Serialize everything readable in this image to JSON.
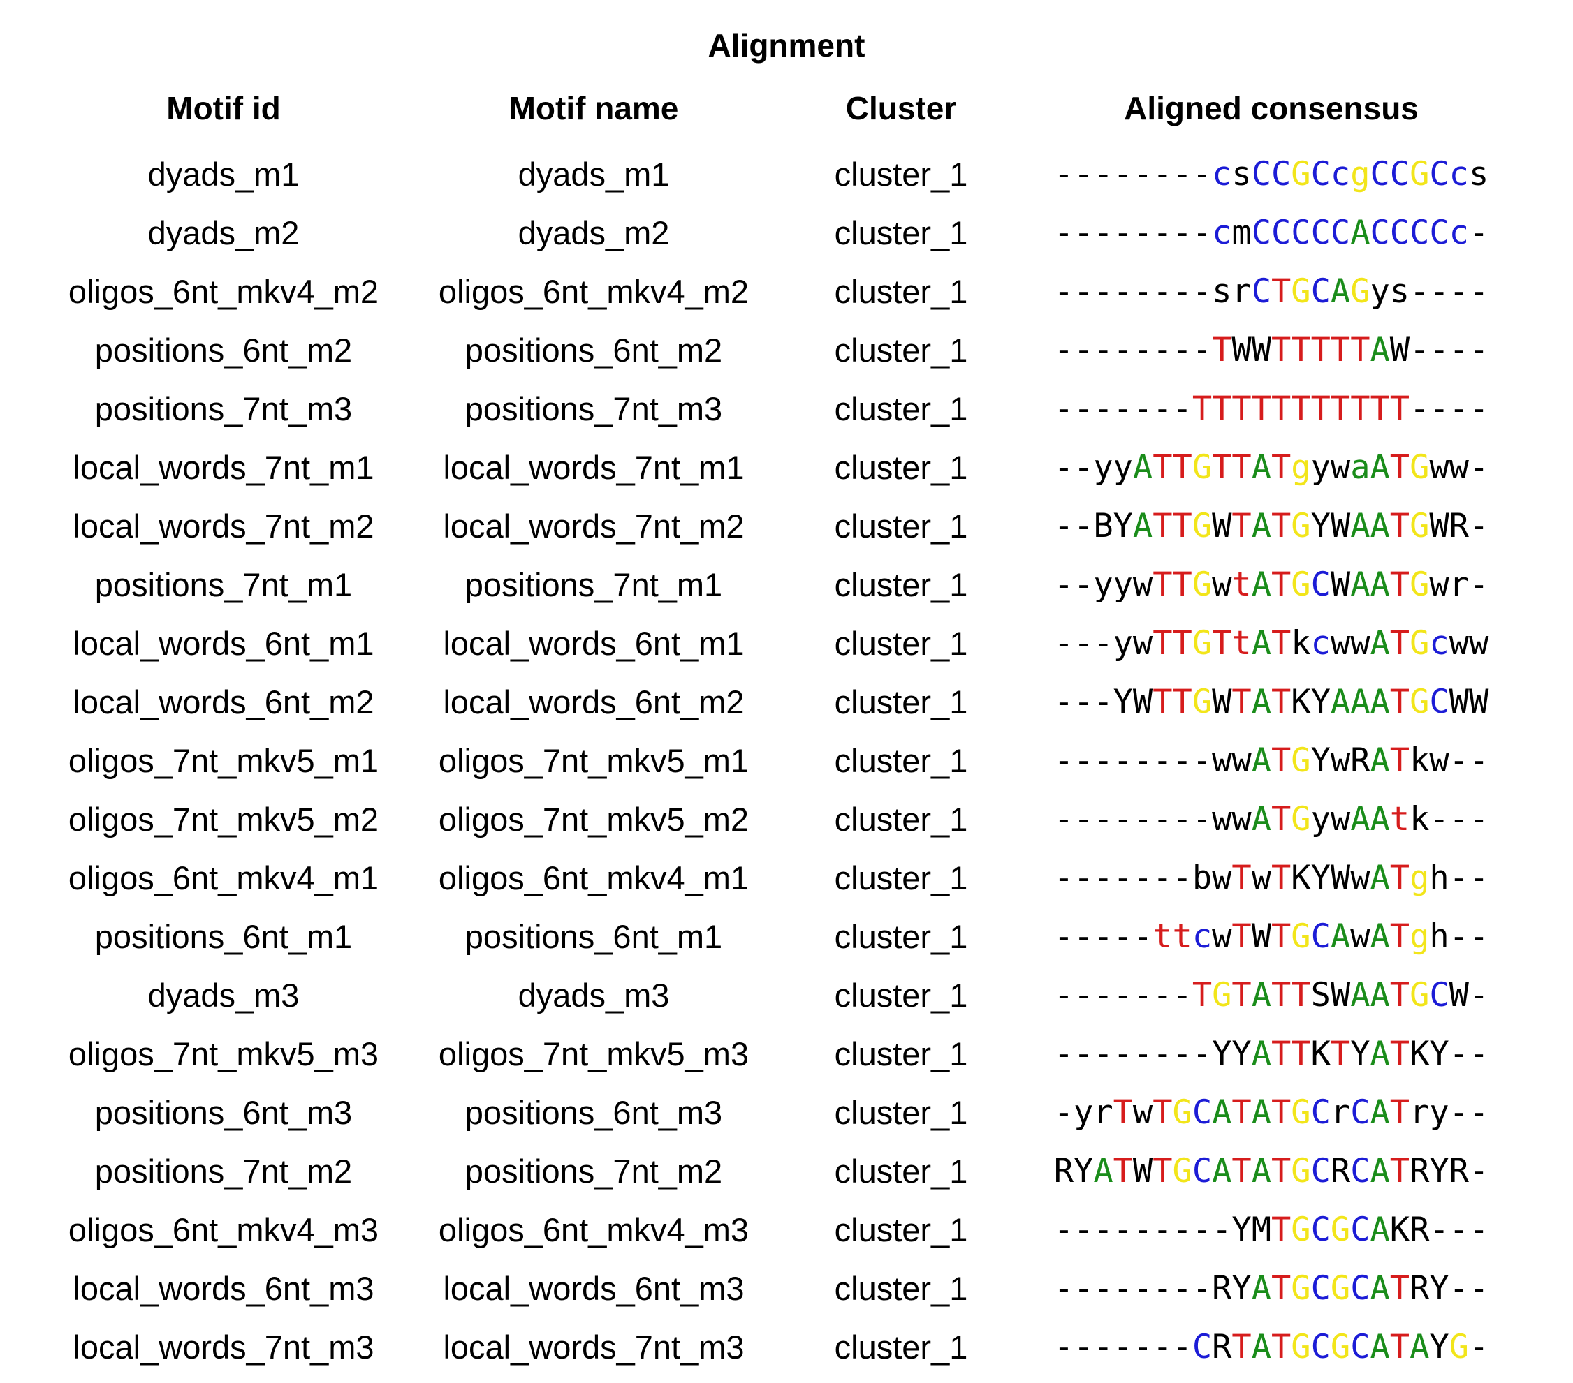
{
  "title": "Alignment",
  "headers": {
    "motif_id": "Motif id",
    "motif_name": "Motif name",
    "cluster": "Cluster",
    "aligned_consensus": "Aligned consensus"
  },
  "colors": {
    "A": "#1a8c1a",
    "C": "#1c1cd6",
    "G": "#f2e51a",
    "T": "#d61c1c",
    "other": "#000000"
  },
  "rows": [
    {
      "motif_id": "dyads_m1",
      "motif_name": "dyads_m1",
      "cluster": "cluster_1",
      "consensus": "--------csCCGCcgCCGCcs"
    },
    {
      "motif_id": "dyads_m2",
      "motif_name": "dyads_m2",
      "cluster": "cluster_1",
      "consensus": "--------cmCCCCCACCCCc-"
    },
    {
      "motif_id": "oligos_6nt_mkv4_m2",
      "motif_name": "oligos_6nt_mkv4_m2",
      "cluster": "cluster_1",
      "consensus": "--------srCTGCAGys----"
    },
    {
      "motif_id": "positions_6nt_m2",
      "motif_name": "positions_6nt_m2",
      "cluster": "cluster_1",
      "consensus": "--------TWWTTTTTAW----"
    },
    {
      "motif_id": "positions_7nt_m3",
      "motif_name": "positions_7nt_m3",
      "cluster": "cluster_1",
      "consensus": "-------TTTTTTTTTTT----"
    },
    {
      "motif_id": "local_words_7nt_m1",
      "motif_name": "local_words_7nt_m1",
      "cluster": "cluster_1",
      "consensus": "--yyATTGTTATgywaATGww-"
    },
    {
      "motif_id": "local_words_7nt_m2",
      "motif_name": "local_words_7nt_m2",
      "cluster": "cluster_1",
      "consensus": "--BYATTGWTATGYWAATGWR-"
    },
    {
      "motif_id": "positions_7nt_m1",
      "motif_name": "positions_7nt_m1",
      "cluster": "cluster_1",
      "consensus": "--yywTTGwtATGCWAATGwr-"
    },
    {
      "motif_id": "local_words_6nt_m1",
      "motif_name": "local_words_6nt_m1",
      "cluster": "cluster_1",
      "consensus": "---ywTTGTtATkcwwATGcww"
    },
    {
      "motif_id": "local_words_6nt_m2",
      "motif_name": "local_words_6nt_m2",
      "cluster": "cluster_1",
      "consensus": "---YWTTGWTATKYAAATGCWW"
    },
    {
      "motif_id": "oligos_7nt_mkv5_m1",
      "motif_name": "oligos_7nt_mkv5_m1",
      "cluster": "cluster_1",
      "consensus": "--------wwATGYwRATkw--"
    },
    {
      "motif_id": "oligos_7nt_mkv5_m2",
      "motif_name": "oligos_7nt_mkv5_m2",
      "cluster": "cluster_1",
      "consensus": "--------wwATGywAAtk---"
    },
    {
      "motif_id": "oligos_6nt_mkv4_m1",
      "motif_name": "oligos_6nt_mkv4_m1",
      "cluster": "cluster_1",
      "consensus": "-------bwTwTKYWwATgh--"
    },
    {
      "motif_id": "positions_6nt_m1",
      "motif_name": "positions_6nt_m1",
      "cluster": "cluster_1",
      "consensus": "-----ttcwTWTGCAwATgh--"
    },
    {
      "motif_id": "dyads_m3",
      "motif_name": "dyads_m3",
      "cluster": "cluster_1",
      "consensus": "-------TGTATTSWAATGCW-"
    },
    {
      "motif_id": "oligos_7nt_mkv5_m3",
      "motif_name": "oligos_7nt_mkv5_m3",
      "cluster": "cluster_1",
      "consensus": "--------YYATTKTYATKY--"
    },
    {
      "motif_id": "positions_6nt_m3",
      "motif_name": "positions_6nt_m3",
      "cluster": "cluster_1",
      "consensus": "-yrTwTGCATATGCrCATry--"
    },
    {
      "motif_id": "positions_7nt_m2",
      "motif_name": "positions_7nt_m2",
      "cluster": "cluster_1",
      "consensus": "RYATWTGCATATGCRCATRYR-"
    },
    {
      "motif_id": "oligos_6nt_mkv4_m3",
      "motif_name": "oligos_6nt_mkv4_m3",
      "cluster": "cluster_1",
      "consensus": "---------YMTGCGCAKR---"
    },
    {
      "motif_id": "local_words_6nt_m3",
      "motif_name": "local_words_6nt_m3",
      "cluster": "cluster_1",
      "consensus": "--------RYATGCGCATRY--"
    },
    {
      "motif_id": "local_words_7nt_m3",
      "motif_name": "local_words_7nt_m3",
      "cluster": "cluster_1",
      "consensus": "-------CRTATGCGCATAYG-"
    }
  ]
}
